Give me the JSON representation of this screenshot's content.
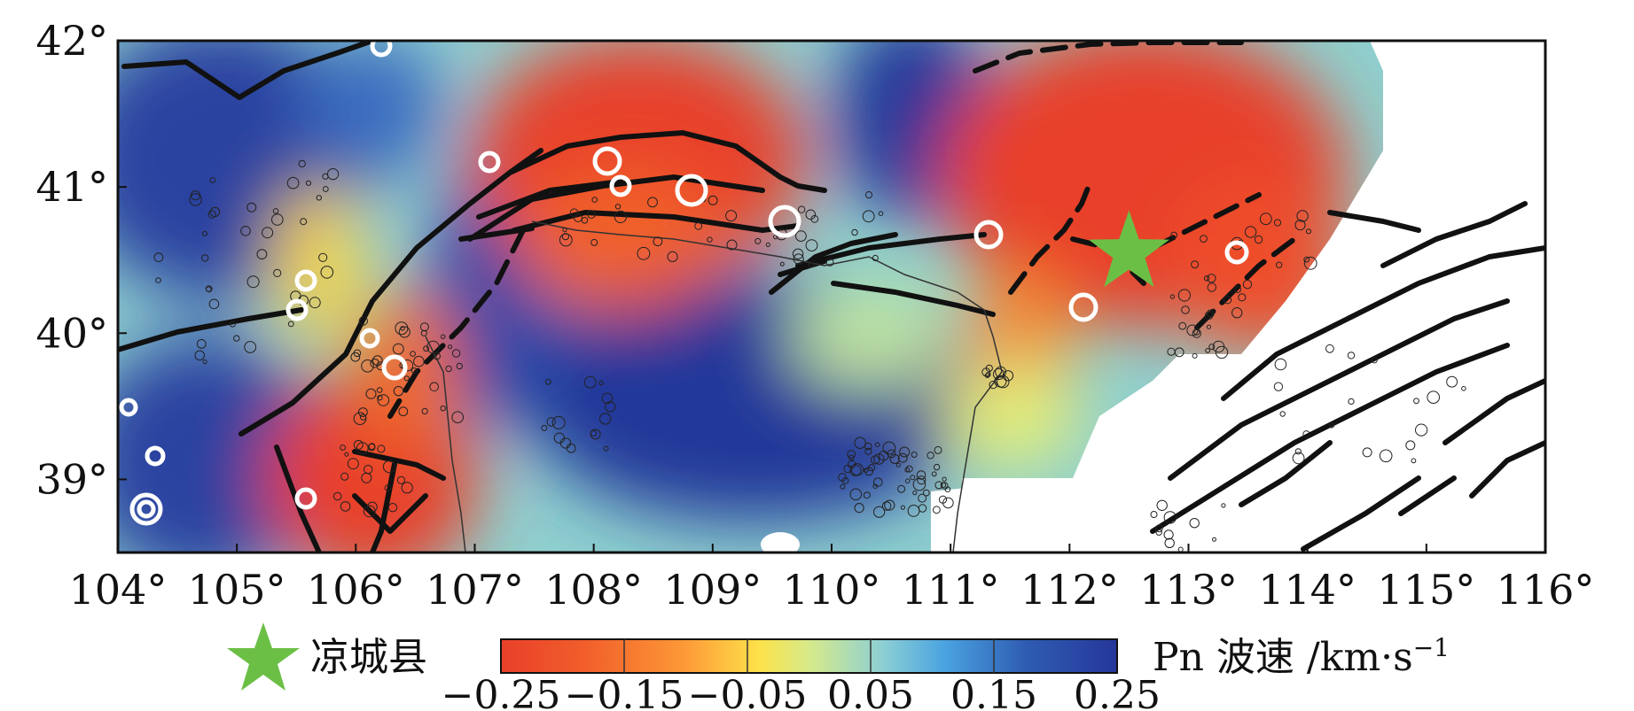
{
  "map": {
    "lon_range": [
      104,
      116
    ],
    "lat_range": [
      38.5,
      42
    ],
    "x_ticks": [
      "104°",
      "105°",
      "106°",
      "107°",
      "108°",
      "109°",
      "110°",
      "111°",
      "112°",
      "113°",
      "114°",
      "115°",
      "116°"
    ],
    "y_ticks": [
      "42°",
      "41°",
      "40°",
      "39°"
    ],
    "y_tick_values": [
      42,
      41,
      40,
      39
    ]
  },
  "marker": {
    "label": "凉城县",
    "lon": 112.5,
    "lat": 40.55,
    "color": "#6cbf45",
    "icon": "star-icon"
  },
  "legend": {
    "title": "Pn 波速 /km·s",
    "title_sup": "−1",
    "min_label": "−0.25",
    "max_label": "0.25",
    "tick_labels": [
      "−0.25",
      "−0.15",
      "−0.05",
      "0.05",
      "0.15",
      "0.25"
    ],
    "colors": [
      "#e8402a",
      "#f46d2d",
      "#fdb33c",
      "#f4ef5c",
      "#b9dea4",
      "#62c4de",
      "#3f7fc6",
      "#25379a"
    ]
  }
}
